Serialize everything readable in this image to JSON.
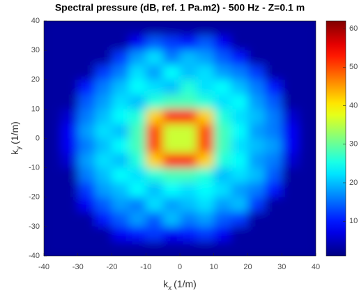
{
  "chart_data": {
    "type": "heatmap",
    "title": "Spectral pressure (dB, ref. 1 Pa.m2) - 500 Hz - Z=0.1 m",
    "xlabel": {
      "symbol": "k",
      "subscript": "x",
      "unit": "(1/m)"
    },
    "ylabel": {
      "symbol": "k",
      "subscript": "y",
      "unit": "(1/m)"
    },
    "xlim": [
      -40,
      40
    ],
    "ylim": [
      -40,
      40
    ],
    "xticks": [
      -40,
      -30,
      -20,
      -10,
      0,
      10,
      20,
      30,
      40
    ],
    "yticks": [
      -40,
      -30,
      -20,
      -10,
      0,
      10,
      20,
      30,
      40
    ],
    "x": [
      -37.5,
      -32.5,
      -27.5,
      -22.5,
      -17.5,
      -12.5,
      -7.5,
      -2.5,
      2.5,
      7.5,
      12.5,
      17.5,
      22.5,
      27.5,
      32.5,
      37.5
    ],
    "y": [
      37.5,
      32.5,
      27.5,
      22.5,
      17.5,
      12.5,
      7.5,
      2.5,
      -2.5,
      -7.5,
      -12.5,
      -17.5,
      -22.5,
      -27.5,
      -32.5,
      -37.5
    ],
    "values": [
      [
        3,
        3,
        3,
        3,
        3,
        3,
        3,
        3,
        3,
        3,
        3,
        3,
        3,
        3,
        3,
        3
      ],
      [
        3,
        3,
        3,
        3,
        3,
        8,
        14,
        12,
        10,
        14,
        8,
        3,
        3,
        3,
        3,
        3
      ],
      [
        3,
        3,
        3,
        3,
        12,
        18,
        22,
        16,
        20,
        18,
        14,
        10,
        3,
        3,
        3,
        3
      ],
      [
        3,
        3,
        3,
        12,
        16,
        22,
        18,
        24,
        20,
        22,
        18,
        16,
        12,
        3,
        3,
        3
      ],
      [
        3,
        3,
        10,
        16,
        20,
        24,
        22,
        20,
        26,
        22,
        24,
        20,
        16,
        10,
        3,
        3
      ],
      [
        3,
        3,
        14,
        18,
        22,
        20,
        26,
        28,
        28,
        26,
        22,
        24,
        18,
        14,
        3,
        3
      ],
      [
        3,
        6,
        16,
        20,
        24,
        26,
        42,
        54,
        54,
        42,
        26,
        22,
        20,
        16,
        6,
        3
      ],
      [
        3,
        8,
        18,
        22,
        20,
        28,
        50,
        36,
        36,
        50,
        28,
        24,
        18,
        16,
        8,
        3
      ],
      [
        3,
        8,
        16,
        20,
        24,
        28,
        50,
        36,
        36,
        50,
        28,
        22,
        20,
        18,
        8,
        3
      ],
      [
        3,
        6,
        18,
        22,
        20,
        26,
        42,
        54,
        54,
        42,
        26,
        24,
        18,
        16,
        6,
        3
      ],
      [
        3,
        3,
        16,
        20,
        24,
        22,
        26,
        28,
        28,
        26,
        20,
        22,
        20,
        14,
        3,
        3
      ],
      [
        3,
        3,
        12,
        18,
        20,
        24,
        20,
        24,
        22,
        24,
        22,
        18,
        16,
        10,
        3,
        3
      ],
      [
        3,
        3,
        8,
        14,
        18,
        16,
        22,
        18,
        20,
        22,
        18,
        20,
        12,
        3,
        3,
        3
      ],
      [
        3,
        3,
        3,
        10,
        14,
        18,
        14,
        20,
        16,
        18,
        14,
        12,
        3,
        3,
        3,
        3
      ],
      [
        3,
        3,
        3,
        3,
        8,
        10,
        12,
        8,
        10,
        12,
        8,
        3,
        3,
        3,
        3,
        3
      ],
      [
        3,
        3,
        3,
        3,
        3,
        3,
        3,
        3,
        3,
        3,
        3,
        3,
        3,
        3,
        3,
        3
      ]
    ],
    "colormap": "jet",
    "clim": [
      1,
      62
    ],
    "cticks": [
      10,
      20,
      30,
      40,
      50,
      60
    ]
  }
}
